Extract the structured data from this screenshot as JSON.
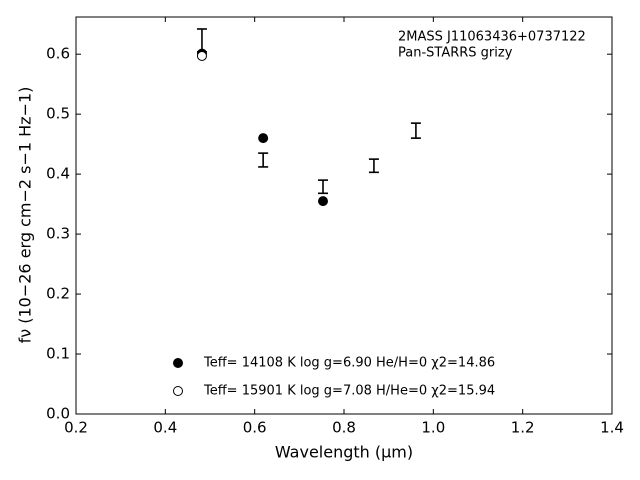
{
  "chart_data": {
    "type": "scatter",
    "xlabel": "Wavelength (μm)",
    "ylabel": "fν (10−26 erg cm−2 s−1 Hz−1)",
    "annotations": [
      "2MASS J11063436+0737122",
      "Pan-STARRS grizy"
    ],
    "xlim": [
      0.2,
      1.4
    ],
    "xticks": [
      0.2,
      0.4,
      0.6,
      0.8,
      {
        "value": 1.0,
        "label": "1.0"
      },
      1.2,
      1.4
    ],
    "ylim": [
      0,
      0.662
    ],
    "yticks": [
      {
        "value": 0,
        "label": "0.0"
      },
      0.1,
      0.2,
      0.3,
      0.4,
      0.5,
      0.6
    ],
    "legend": "lower center",
    "series": [
      {
        "marker": "errorbar",
        "color": "#000000",
        "x": [
          0.482,
          0.619,
          0.753,
          0.867,
          0.961
        ],
        "values": [
          0.623,
          0.4235,
          0.379,
          0.414,
          0.4725
        ],
        "errors": [
          0.019,
          0.0115,
          0.011,
          0.011,
          0.0125
        ]
      },
      {
        "name": "Teff= 14108 K  log g=6.90  He/H=0  χ2=14.86",
        "marker": "filled",
        "color": "#000000",
        "x": [
          0.482,
          0.619,
          0.753
        ],
        "values": [
          0.601,
          0.46,
          0.355
        ]
      },
      {
        "name": "Teff= 15901 K  log g=7.08  H/He=0  χ2=15.94",
        "marker": "open",
        "color": "#000000",
        "x": [
          0.482
        ],
        "values": [
          0.597
        ]
      }
    ]
  }
}
